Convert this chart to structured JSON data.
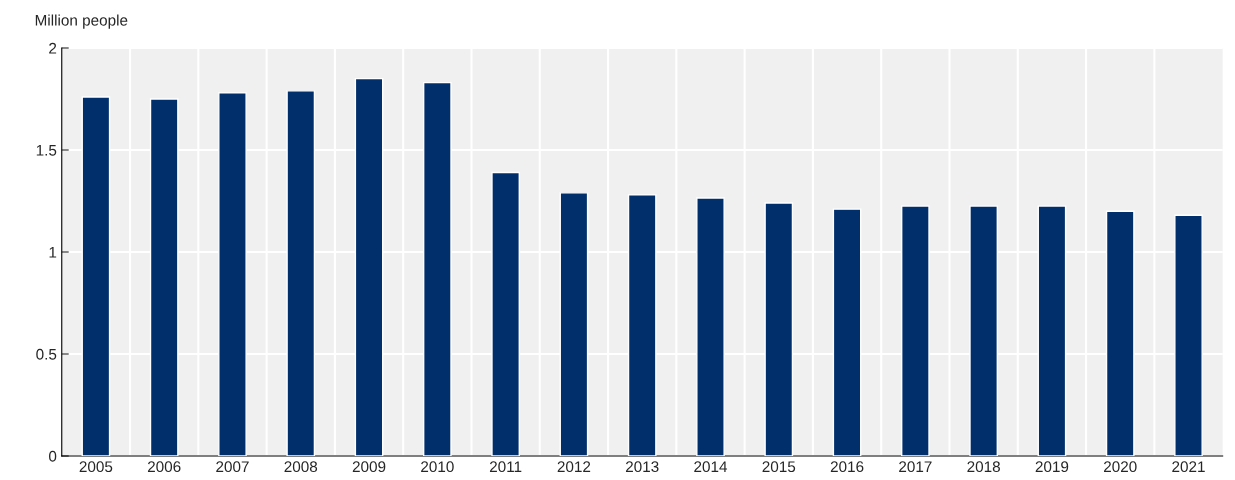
{
  "chart_data": {
    "type": "bar",
    "ylabel": "Million people",
    "categories": [
      "2005",
      "2006",
      "2007",
      "2008",
      "2009",
      "2010",
      "2011",
      "2012",
      "2013",
      "2014",
      "2015",
      "2016",
      "2017",
      "2018",
      "2019",
      "2020",
      "2021"
    ],
    "series": [
      {
        "color": "#002f6c",
        "values": [
          1.76,
          1.75,
          1.78,
          1.79,
          1.85,
          1.83,
          1.39,
          1.29,
          1.28,
          1.265,
          1.24,
          1.21,
          1.225,
          1.225,
          1.225,
          1.2,
          1.18
        ]
      }
    ],
    "ylim": [
      0,
      2
    ],
    "yticks": [
      0,
      0.5,
      1,
      1.5,
      2
    ],
    "grid": true
  }
}
